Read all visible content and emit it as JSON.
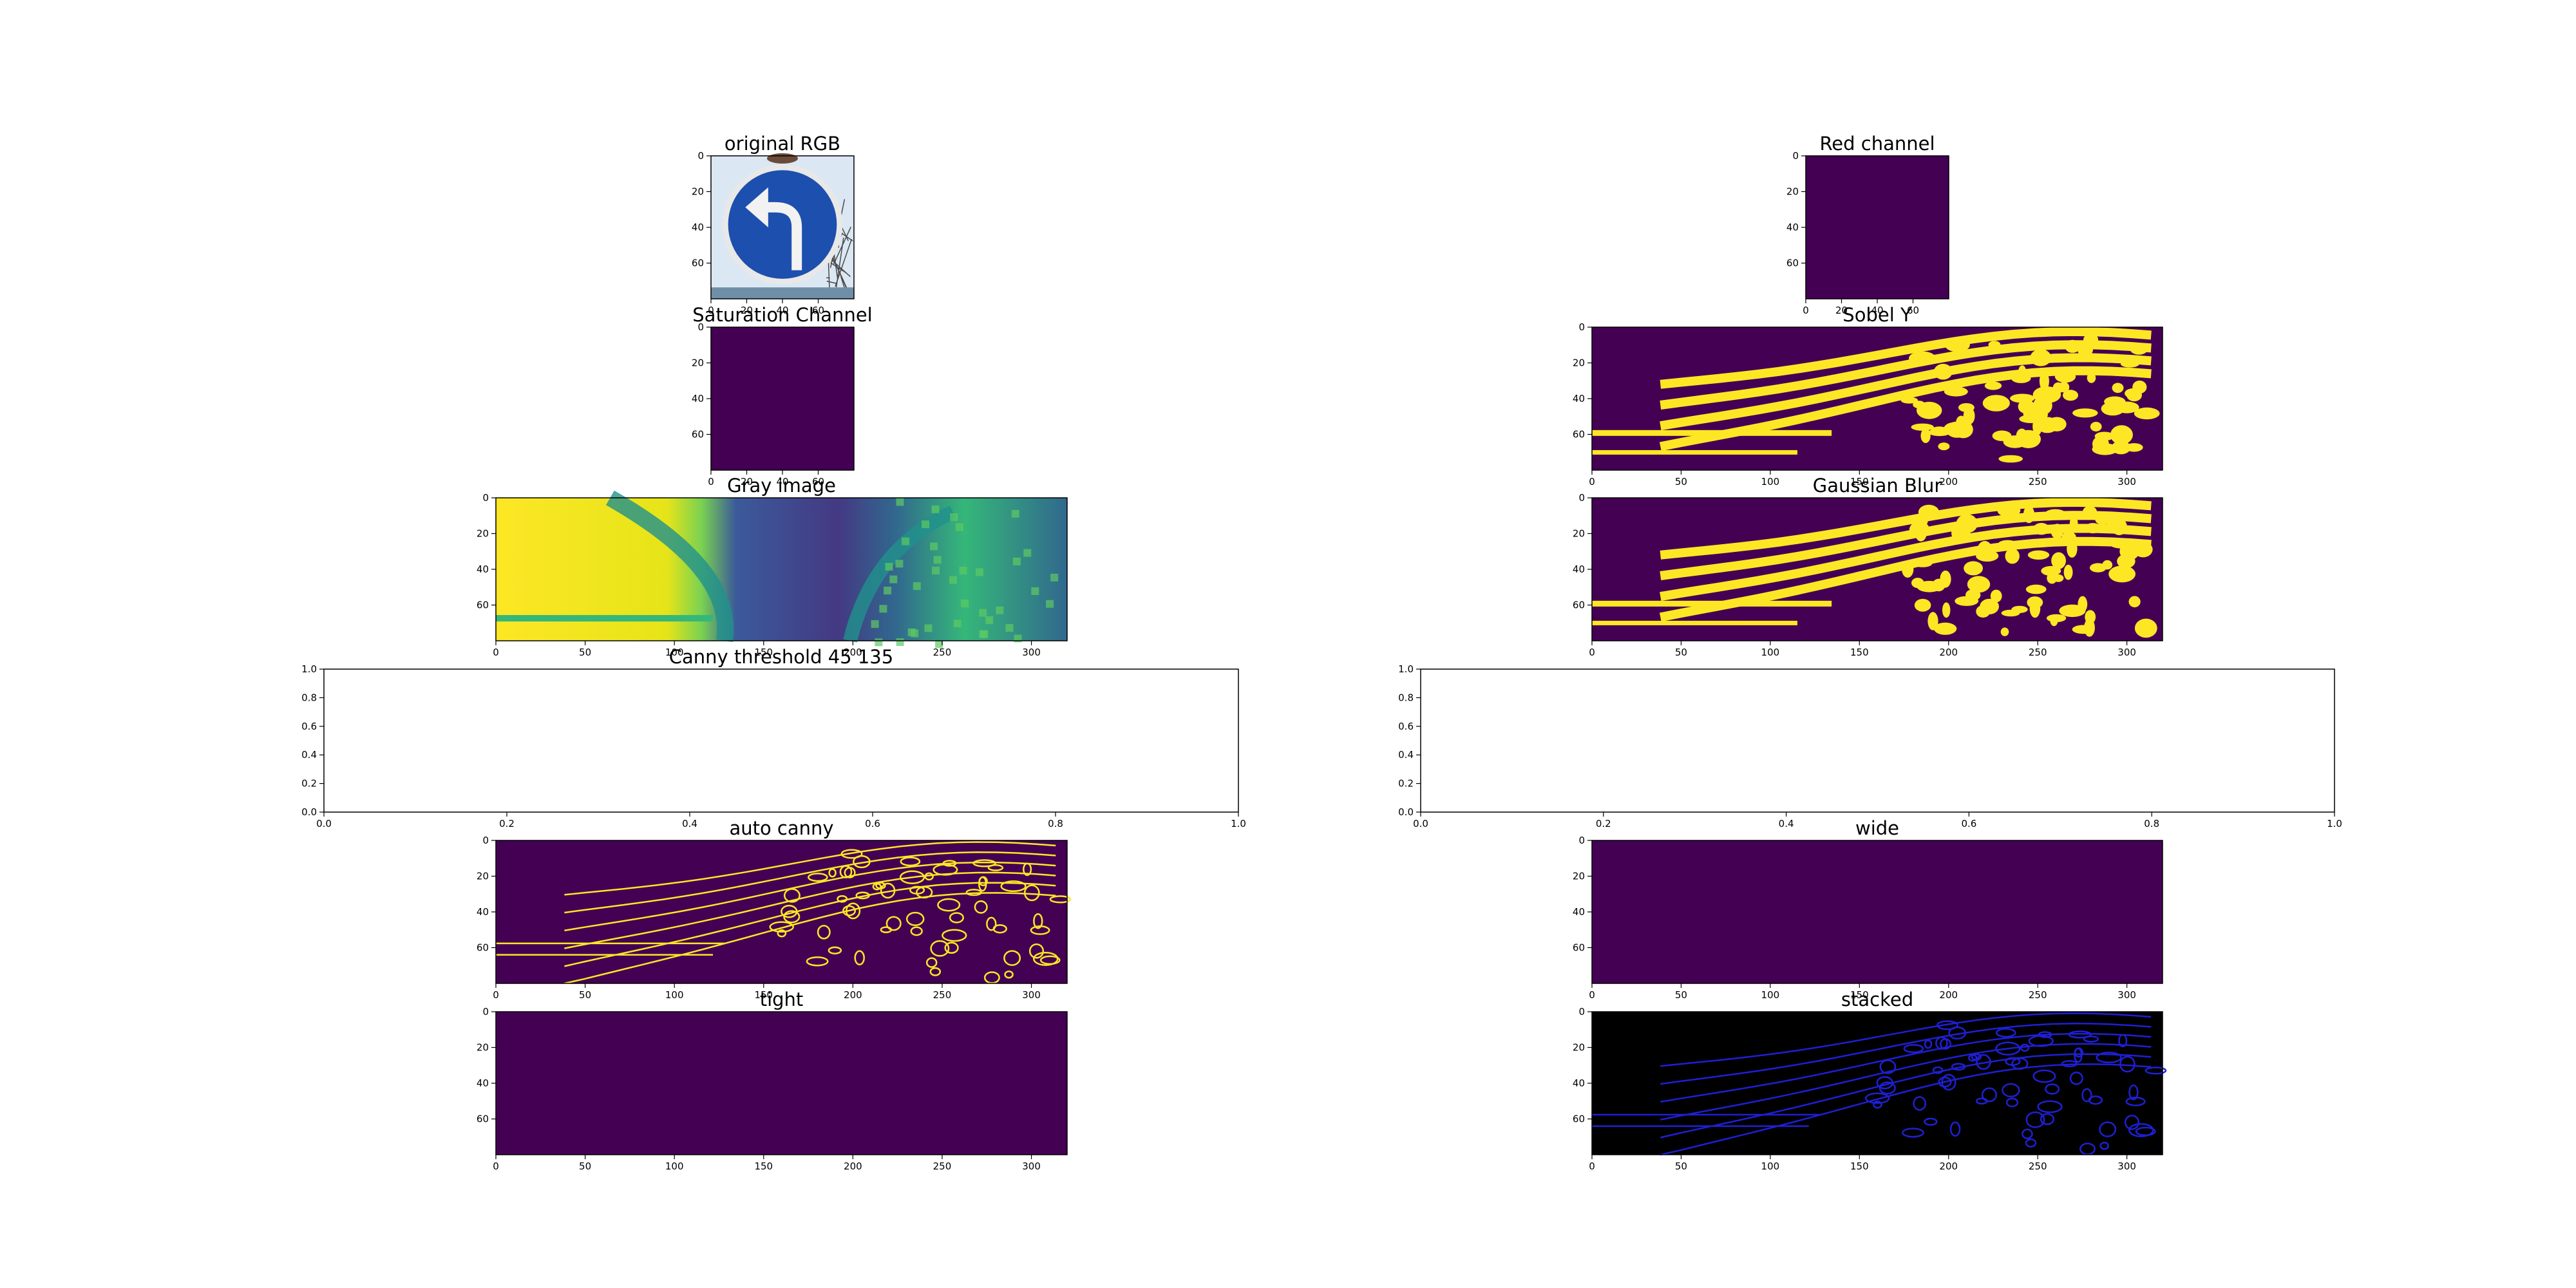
{
  "figure": {
    "panels": [
      {
        "id": "rgb",
        "title": "original RGB",
        "kind": "image-rgb",
        "xticks": [
          "0",
          "20",
          "40",
          "60"
        ],
        "yticks": [
          "0",
          "20",
          "40",
          "60"
        ]
      },
      {
        "id": "red",
        "title": "Red channel",
        "kind": "image-flat",
        "xticks": [
          "0",
          "20",
          "40",
          "60"
        ],
        "yticks": [
          "0",
          "20",
          "40",
          "60"
        ]
      },
      {
        "id": "sat",
        "title": "Saturation Channel",
        "kind": "image-flat",
        "xticks": [
          "0",
          "20",
          "40",
          "60"
        ],
        "yticks": [
          "0",
          "20",
          "40",
          "60"
        ]
      },
      {
        "id": "sobely",
        "title": "Sobel Y",
        "kind": "image-binary",
        "xticks": [
          "0",
          "50",
          "100",
          "150",
          "200",
          "250",
          "300"
        ],
        "yticks": [
          "0",
          "20",
          "40",
          "60"
        ]
      },
      {
        "id": "gray",
        "title": "Gray image",
        "kind": "image-gray",
        "xticks": [
          "0",
          "50",
          "100",
          "150",
          "200",
          "250",
          "300"
        ],
        "yticks": [
          "0",
          "20",
          "40",
          "60"
        ]
      },
      {
        "id": "gauss",
        "title": "Gaussian Blur",
        "kind": "image-binary",
        "xticks": [
          "0",
          "50",
          "100",
          "150",
          "200",
          "250",
          "300"
        ],
        "yticks": [
          "0",
          "20",
          "40",
          "60"
        ]
      },
      {
        "id": "canny",
        "title": "Canny threshold 45 135",
        "kind": "empty-axes",
        "xticks": [
          "0.0",
          "0.2",
          "0.4",
          "0.6",
          "0.8",
          "1.0"
        ],
        "yticks": [
          "1.0",
          "0.8",
          "0.6",
          "0.4",
          "0.2",
          "0.0"
        ]
      },
      {
        "id": "empty2",
        "title": "",
        "kind": "empty-axes",
        "xticks": [
          "0.0",
          "0.2",
          "0.4",
          "0.6",
          "0.8",
          "1.0"
        ],
        "yticks": [
          "1.0",
          "0.8",
          "0.6",
          "0.4",
          "0.2",
          "0.0"
        ]
      },
      {
        "id": "auto",
        "title": "auto canny",
        "kind": "image-edges",
        "xticks": [
          "0",
          "50",
          "100",
          "150",
          "200",
          "250",
          "300"
        ],
        "yticks": [
          "0",
          "20",
          "40",
          "60"
        ]
      },
      {
        "id": "wide",
        "title": "wide",
        "kind": "image-flat",
        "xticks": [
          "0",
          "50",
          "100",
          "150",
          "200",
          "250",
          "300"
        ],
        "yticks": [
          "0",
          "20",
          "40",
          "60"
        ]
      },
      {
        "id": "tight",
        "title": "tight",
        "kind": "image-flat",
        "xticks": [
          "0",
          "50",
          "100",
          "150",
          "200",
          "250",
          "300"
        ],
        "yticks": [
          "0",
          "20",
          "40",
          "60"
        ]
      },
      {
        "id": "stacked",
        "title": "stacked",
        "kind": "image-stacked",
        "xticks": [
          "0",
          "50",
          "100",
          "150",
          "200",
          "250",
          "300"
        ],
        "yticks": [
          "0",
          "20",
          "40",
          "60"
        ]
      }
    ]
  },
  "colors": {
    "viridis_dark": "#440154",
    "viridis_yellow": "#fde725",
    "stacked_background": "#000000",
    "stacked_edges": "#1f1fd6",
    "sign_blue": "#1d4fae",
    "gray_blue": "#3b5a9a",
    "gray_teal": "#21918c"
  },
  "chart_data": [
    {
      "type": "heatmap",
      "title": "original RGB",
      "xlim": [
        0,
        80
      ],
      "ylim": [
        80,
        0
      ],
      "image": "RGB photo of a round blue sign with a white arrow turning left"
    },
    {
      "type": "heatmap",
      "title": "Red channel",
      "xlim": [
        0,
        80
      ],
      "ylim": [
        80,
        0
      ],
      "value": "uniform"
    },
    {
      "type": "heatmap",
      "title": "Saturation Channel",
      "xlim": [
        0,
        80
      ],
      "ylim": [
        80,
        0
      ],
      "value": "uniform"
    },
    {
      "type": "heatmap",
      "title": "Sobel Y",
      "xlim": [
        0,
        320
      ],
      "ylim": [
        80,
        0
      ],
      "colormap": "viridis",
      "values": "binary"
    },
    {
      "type": "heatmap",
      "title": "Gray image",
      "xlim": [
        0,
        320
      ],
      "ylim": [
        80,
        0
      ],
      "colormap": "viridis"
    },
    {
      "type": "heatmap",
      "title": "Gaussian Blur",
      "xlim": [
        0,
        320
      ],
      "ylim": [
        80,
        0
      ],
      "colormap": "viridis",
      "values": "binary"
    },
    {
      "type": "line",
      "title": "Canny threshold 45 135",
      "xlim": [
        0,
        1
      ],
      "ylim": [
        0,
        1
      ],
      "series": []
    },
    {
      "type": "line",
      "title": "",
      "xlim": [
        0,
        1
      ],
      "ylim": [
        0,
        1
      ],
      "series": []
    },
    {
      "type": "heatmap",
      "title": "auto canny",
      "xlim": [
        0,
        320
      ],
      "ylim": [
        80,
        0
      ],
      "colormap": "viridis",
      "values": "edges"
    },
    {
      "type": "heatmap",
      "title": "wide",
      "xlim": [
        0,
        320
      ],
      "ylim": [
        80,
        0
      ],
      "value": "uniform"
    },
    {
      "type": "heatmap",
      "title": "tight",
      "xlim": [
        0,
        320
      ],
      "ylim": [
        80,
        0
      ],
      "value": "uniform"
    },
    {
      "type": "heatmap",
      "title": "stacked",
      "xlim": [
        0,
        320
      ],
      "ylim": [
        80,
        0
      ],
      "values": "blue edges on black"
    }
  ]
}
